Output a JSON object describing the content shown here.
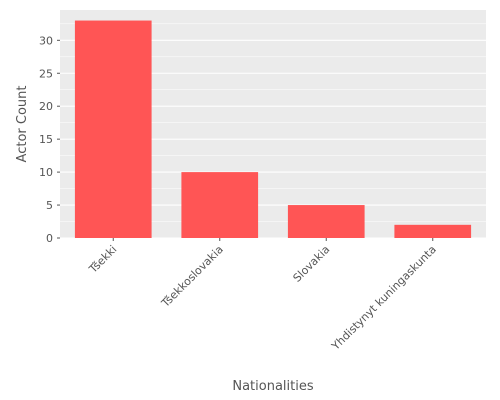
{
  "chart_data": {
    "type": "bar",
    "title": "",
    "xlabel": "Nationalities",
    "ylabel": "Actor Count",
    "categories": [
      "Tšekki",
      "Tšekkoslovakia",
      "Slovakia",
      "Yhdistynyt kuningaskunta"
    ],
    "values": [
      33,
      10,
      5,
      2
    ],
    "ylim": [
      0,
      34.6
    ],
    "yticks": [
      0,
      5,
      10,
      15,
      20,
      25,
      30
    ],
    "grid": true,
    "legend": "none",
    "colors": {
      "bar": "#ff5555",
      "panel": "#ebebeb",
      "grid": "#ffffff",
      "text": "#555555"
    }
  }
}
